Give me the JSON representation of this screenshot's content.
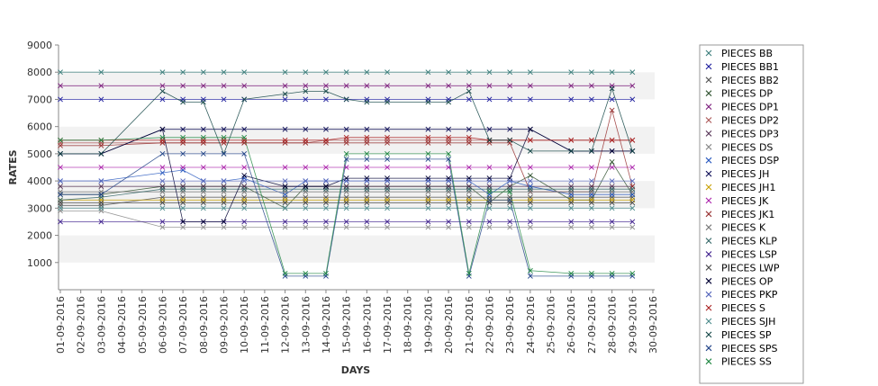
{
  "chart_data": {
    "type": "line",
    "title": "",
    "xlabel": "DAYS",
    "ylabel": "RATES",
    "ylim": [
      0,
      9000
    ],
    "yticks": [
      1000,
      2000,
      3000,
      4000,
      5000,
      6000,
      7000,
      8000,
      9000
    ],
    "grid": "horizontal alternating bands",
    "legend_position": "right",
    "categories": [
      "01-09-2016",
      "02-09-2016",
      "03-09-2016",
      "04-09-2016",
      "05-09-2016",
      "06-09-2016",
      "07-09-2016",
      "08-09-2016",
      "09-09-2016",
      "10-09-2016",
      "11-09-2016",
      "12-09-2016",
      "13-09-2016",
      "14-09-2016",
      "15-09-2016",
      "16-09-2016",
      "17-09-2016",
      "18-09-2016",
      "19-09-2016",
      "20-09-2016",
      "21-09-2016",
      "22-09-2016",
      "23-09-2016",
      "24-09-2016",
      "25-09-2016",
      "26-09-2016",
      "27-09-2016",
      "28-09-2016",
      "29-09-2016",
      "30-09-2016"
    ],
    "series": [
      {
        "name": "PIECES BB",
        "color": "#3a7d7a",
        "values": [
          8000,
          null,
          8000,
          null,
          null,
          8000,
          8000,
          8000,
          8000,
          8000,
          null,
          8000,
          8000,
          8000,
          8000,
          8000,
          8000,
          null,
          8000,
          8000,
          8000,
          8000,
          8000,
          8000,
          null,
          8000,
          8000,
          8000,
          8000,
          null
        ]
      },
      {
        "name": "PIECES BB1",
        "color": "#1a1a9c",
        "values": [
          7000,
          null,
          7000,
          null,
          null,
          7000,
          7000,
          7000,
          7000,
          7000,
          null,
          7000,
          7000,
          7000,
          7000,
          7000,
          7000,
          null,
          7000,
          7000,
          7000,
          7000,
          7000,
          7000,
          null,
          7000,
          7000,
          7000,
          7000,
          null
        ]
      },
      {
        "name": "PIECES BB2",
        "color": "#555555",
        "values": [
          3100,
          null,
          3100,
          null,
          null,
          3400,
          3400,
          3400,
          3400,
          3400,
          null,
          3400,
          3400,
          3400,
          3400,
          3400,
          3400,
          null,
          3400,
          3400,
          3400,
          3400,
          3400,
          3400,
          null,
          3400,
          3400,
          3400,
          3400,
          null
        ]
      },
      {
        "name": "PIECES DP",
        "color": "#335533",
        "values": [
          3500,
          null,
          3500,
          null,
          null,
          3800,
          3800,
          3800,
          3800,
          3800,
          null,
          3000,
          3800,
          3800,
          3800,
          3800,
          3800,
          null,
          3800,
          3800,
          3800,
          3200,
          3800,
          4200,
          null,
          3300,
          3300,
          4700,
          3500,
          null
        ]
      },
      {
        "name": "PIECES DP1",
        "color": "#7a1a7a",
        "values": [
          7500,
          null,
          7500,
          null,
          null,
          7500,
          7500,
          7500,
          7500,
          7500,
          null,
          7500,
          7500,
          7500,
          7500,
          7500,
          7500,
          null,
          7500,
          7500,
          7500,
          7500,
          7500,
          7500,
          null,
          7500,
          7500,
          7500,
          7500,
          null
        ]
      },
      {
        "name": "PIECES DP2",
        "color": "#aa5555",
        "values": [
          5400,
          null,
          5400,
          null,
          null,
          5400,
          5400,
          5400,
          5400,
          5400,
          null,
          5400,
          5400,
          5500,
          5500,
          5500,
          5500,
          null,
          5500,
          5500,
          5500,
          5500,
          5500,
          5500,
          null,
          5500,
          5500,
          5500,
          5500,
          null
        ]
      },
      {
        "name": "PIECES DP3",
        "color": "#553355",
        "values": [
          3800,
          null,
          3800,
          null,
          null,
          3800,
          3800,
          3800,
          3800,
          3800,
          null,
          3800,
          3800,
          3800,
          3800,
          3800,
          3800,
          null,
          3800,
          3800,
          3800,
          3800,
          3800,
          3800,
          null,
          3800,
          3800,
          3800,
          3800,
          null
        ]
      },
      {
        "name": "PIECES DS",
        "color": "#888888",
        "values": [
          2900,
          null,
          2900,
          null,
          null,
          2300,
          2300,
          2300,
          2300,
          2300,
          null,
          2300,
          2300,
          2300,
          2300,
          2300,
          2300,
          null,
          2300,
          2300,
          2300,
          2300,
          2300,
          2300,
          null,
          2300,
          2300,
          2300,
          2300,
          null
        ]
      },
      {
        "name": "PIECES DSP",
        "color": "#2a5abf",
        "values": [
          4000,
          null,
          4000,
          null,
          null,
          4300,
          4400,
          4000,
          4000,
          4100,
          null,
          3500,
          4000,
          4000,
          4000,
          4000,
          4000,
          null,
          4000,
          4000,
          4000,
          3500,
          4000,
          3800,
          null,
          3500,
          3500,
          3500,
          3500,
          null
        ]
      },
      {
        "name": "PIECES JH",
        "color": "#0a0a55",
        "values": [
          5000,
          null,
          5000,
          null,
          null,
          5900,
          5900,
          5900,
          5900,
          5900,
          null,
          5900,
          5900,
          5900,
          5900,
          5900,
          5900,
          null,
          5900,
          5900,
          5900,
          5900,
          5900,
          5900,
          null,
          5100,
          5100,
          5100,
          5100,
          null
        ]
      },
      {
        "name": "PIECES JH1",
        "color": "#c8a000",
        "values": [
          3300,
          null,
          3300,
          null,
          null,
          3300,
          3300,
          3300,
          3300,
          3300,
          null,
          3300,
          3300,
          3300,
          3300,
          3300,
          3300,
          null,
          3300,
          3300,
          3300,
          3300,
          3300,
          3300,
          null,
          3300,
          3300,
          3300,
          3300,
          null
        ]
      },
      {
        "name": "PIECES JK",
        "color": "#aa22aa",
        "values": [
          4500,
          null,
          4500,
          null,
          null,
          4500,
          4500,
          4500,
          4500,
          4500,
          null,
          4500,
          4500,
          4500,
          4500,
          4500,
          4500,
          null,
          4500,
          4500,
          4500,
          4500,
          4500,
          4500,
          null,
          4500,
          4500,
          4500,
          4500,
          null
        ]
      },
      {
        "name": "PIECES JK1",
        "color": "#993333",
        "values": [
          5300,
          null,
          5300,
          null,
          null,
          5400,
          5400,
          5400,
          5400,
          5400,
          null,
          5400,
          5400,
          5400,
          5400,
          5400,
          5400,
          null,
          5400,
          5400,
          5400,
          5400,
          5400,
          3600,
          null,
          3600,
          3600,
          6600,
          3800,
          null
        ]
      },
      {
        "name": "PIECES K",
        "color": "#777777",
        "values": [
          3600,
          null,
          3600,
          null,
          null,
          3600,
          3600,
          3600,
          3600,
          3600,
          null,
          3600,
          3600,
          3600,
          3600,
          3600,
          3600,
          null,
          3600,
          3600,
          3600,
          3600,
          3600,
          3600,
          null,
          3600,
          3600,
          3600,
          3600,
          null
        ]
      },
      {
        "name": "PIECES KLP",
        "color": "#336666",
        "values": [
          3300,
          null,
          3400,
          null,
          null,
          3700,
          3700,
          3700,
          3700,
          3700,
          null,
          3700,
          3700,
          3700,
          3700,
          3700,
          3700,
          null,
          3700,
          3700,
          3700,
          3700,
          3700,
          3700,
          null,
          3700,
          3700,
          3700,
          3700,
          null
        ]
      },
      {
        "name": "PIECES LSP",
        "color": "#3a1a8a",
        "values": [
          2500,
          null,
          2500,
          null,
          null,
          2500,
          2500,
          2500,
          2500,
          2500,
          null,
          2500,
          2500,
          2500,
          2500,
          2500,
          2500,
          null,
          2500,
          2500,
          2500,
          2500,
          2500,
          2500,
          null,
          2500,
          2500,
          2500,
          2500,
          null
        ]
      },
      {
        "name": "PIECES LWP",
        "color": "#444444",
        "values": [
          3200,
          null,
          3200,
          null,
          null,
          3200,
          3200,
          3200,
          3200,
          3200,
          null,
          3200,
          3200,
          3200,
          3200,
          3200,
          3200,
          null,
          3200,
          3200,
          3200,
          3200,
          3200,
          3200,
          null,
          3200,
          3200,
          3200,
          3200,
          null
        ]
      },
      {
        "name": "PIECES OP",
        "color": "#000033",
        "values": [
          5000,
          null,
          5000,
          null,
          null,
          5900,
          2500,
          2500,
          2500,
          4200,
          null,
          3800,
          3800,
          3800,
          4100,
          4100,
          4100,
          null,
          4100,
          4100,
          4100,
          4100,
          4100,
          5900,
          null,
          5100,
          5100,
          5100,
          5100,
          null
        ]
      },
      {
        "name": "PIECES PKP",
        "color": "#5566bb",
        "values": [
          4000,
          null,
          4000,
          null,
          null,
          4000,
          4000,
          4000,
          4000,
          4000,
          null,
          4000,
          4000,
          4000,
          4000,
          4000,
          4000,
          null,
          4000,
          4000,
          4000,
          4000,
          4000,
          4000,
          null,
          4000,
          4000,
          4000,
          4000,
          null
        ]
      },
      {
        "name": "PIECES S",
        "color": "#aa2222",
        "values": [
          5500,
          null,
          5500,
          null,
          null,
          5500,
          5500,
          5500,
          5500,
          5500,
          null,
          5500,
          5500,
          5500,
          5600,
          5600,
          5600,
          null,
          5600,
          5600,
          5600,
          5500,
          5500,
          5500,
          null,
          5500,
          5500,
          5500,
          5500,
          null
        ]
      },
      {
        "name": "PIECES SJH",
        "color": "#4a8a8a",
        "values": [
          3000,
          null,
          3000,
          null,
          null,
          3000,
          3000,
          3000,
          3000,
          3000,
          null,
          3000,
          3000,
          3000,
          3000,
          3000,
          3000,
          null,
          3000,
          3000,
          3000,
          3000,
          3000,
          3000,
          null,
          3000,
          3000,
          3000,
          3000,
          null
        ]
      },
      {
        "name": "PIECES SP",
        "color": "#114444",
        "values": [
          5000,
          null,
          5000,
          null,
          null,
          7300,
          6900,
          6900,
          5000,
          7000,
          null,
          7200,
          7300,
          7300,
          7000,
          6900,
          6900,
          null,
          6900,
          6900,
          7300,
          5500,
          5500,
          5100,
          null,
          5100,
          5100,
          7400,
          5100,
          null
        ]
      },
      {
        "name": "PIECES SPS",
        "color": "#224488",
        "values": [
          3500,
          null,
          3500,
          null,
          null,
          5000,
          5000,
          5000,
          5000,
          5000,
          null,
          500,
          500,
          500,
          4800,
          4800,
          4800,
          null,
          4800,
          4800,
          500,
          3300,
          3300,
          500,
          null,
          500,
          500,
          500,
          500,
          null
        ]
      },
      {
        "name": "PIECES SS",
        "color": "#228844",
        "values": [
          5500,
          null,
          5500,
          null,
          null,
          5600,
          5600,
          5600,
          5600,
          5600,
          null,
          600,
          600,
          600,
          5000,
          5000,
          5000,
          null,
          5000,
          5000,
          600,
          3600,
          3600,
          700,
          null,
          600,
          600,
          600,
          600,
          null
        ]
      }
    ]
  }
}
